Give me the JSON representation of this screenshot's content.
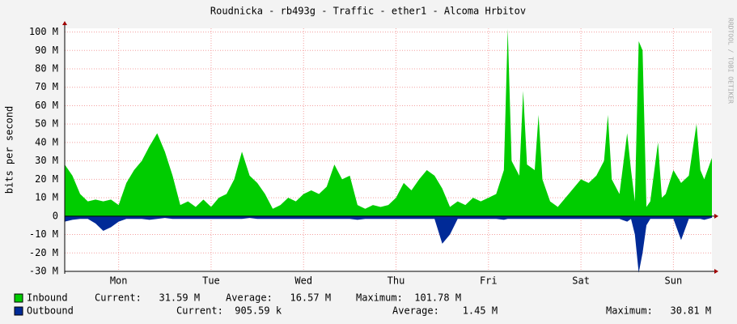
{
  "chart_data": {
    "type": "area",
    "title": "Roudnicka - rb493g - Traffic - ether1 - Alcoma Hrbitov",
    "y_label": "bits per second",
    "watermark": "RRDTOOL / TOBI OETIKER",
    "x": [
      0,
      2,
      4,
      6,
      8,
      10,
      12,
      14,
      16,
      18,
      20,
      22,
      24,
      26,
      28,
      30,
      32,
      34,
      36,
      38,
      40,
      42,
      44,
      46,
      48,
      50,
      52,
      54,
      56,
      58,
      60,
      62,
      64,
      66,
      68,
      70,
      72,
      74,
      76,
      78,
      80,
      82,
      84,
      86,
      88,
      90,
      92,
      94,
      96,
      98,
      100,
      102,
      104,
      106,
      108,
      110,
      112,
      114,
      115,
      116,
      118,
      119,
      120,
      122,
      123,
      124,
      126,
      128,
      130,
      132,
      134,
      136,
      138,
      140,
      141,
      142,
      144,
      146,
      147,
      148,
      149,
      150,
      151,
      152,
      154,
      155,
      156,
      158,
      160,
      162,
      164,
      165,
      166,
      168
    ],
    "xlim": [
      0,
      168
    ],
    "xticks": [
      {
        "value": 14,
        "label": "Mon"
      },
      {
        "value": 38,
        "label": "Tue"
      },
      {
        "value": 62,
        "label": "Wed"
      },
      {
        "value": 86,
        "label": "Thu"
      },
      {
        "value": 110,
        "label": "Fri"
      },
      {
        "value": 134,
        "label": "Sat"
      },
      {
        "value": 158,
        "label": "Sun"
      }
    ],
    "ylim": [
      -30000000,
      102000000
    ],
    "yticks": [
      {
        "value": -30000000,
        "label": "-30 M"
      },
      {
        "value": -20000000,
        "label": "-20 M"
      },
      {
        "value": -10000000,
        "label": "-10 M"
      },
      0,
      {
        "value": 10000000,
        "label": "10 M"
      },
      {
        "value": 20000000,
        "label": "20 M"
      },
      {
        "value": 30000000,
        "label": "30 M"
      },
      {
        "value": 40000000,
        "label": "40 M"
      },
      {
        "value": 50000000,
        "label": "50 M"
      },
      {
        "value": 60000000,
        "label": "60 M"
      },
      {
        "value": 70000000,
        "label": "70 M"
      },
      {
        "value": 80000000,
        "label": "80 M"
      },
      {
        "value": 90000000,
        "label": "90 M"
      },
      {
        "value": 100000000,
        "label": "100 M"
      }
    ],
    "grid": true,
    "series": [
      {
        "name": "Inbound",
        "color": "#00cc00",
        "stats": [
          "Current:   31.59 M",
          "Average:   16.57 M",
          "Maximum:  101.78 M"
        ],
        "values": [
          28000000,
          22000000,
          12000000,
          8000000,
          9000000,
          8000000,
          9000000,
          6000000,
          18000000,
          25000000,
          30000000,
          38000000,
          45000000,
          35000000,
          22000000,
          6000000,
          8000000,
          5000000,
          9000000,
          5000000,
          10000000,
          12000000,
          20000000,
          35000000,
          22000000,
          18000000,
          12000000,
          4000000,
          6000000,
          10000000,
          8000000,
          12000000,
          14000000,
          12000000,
          16000000,
          28000000,
          20000000,
          22000000,
          6000000,
          4000000,
          6000000,
          5000000,
          6000000,
          10000000,
          18000000,
          14000000,
          20000000,
          25000000,
          22000000,
          15000000,
          5000000,
          8000000,
          6000000,
          10000000,
          8000000,
          10000000,
          12000000,
          25000000,
          101780000,
          30000000,
          22000000,
          68000000,
          28000000,
          25000000,
          55000000,
          20000000,
          8000000,
          5000000,
          10000000,
          15000000,
          20000000,
          18000000,
          22000000,
          30000000,
          55000000,
          20000000,
          12000000,
          45000000,
          25000000,
          8000000,
          95000000,
          90000000,
          5000000,
          8000000,
          40000000,
          10000000,
          12000000,
          25000000,
          18000000,
          22000000,
          50000000,
          25000000,
          20000000,
          31590000
        ]
      },
      {
        "name": "Outbound",
        "color": "#002a97",
        "stats": [
          "Current:  905.59 k",
          "Average:    1.45 M",
          "Maximum:   30.81 M"
        ],
        "values": [
          -3000000,
          -2000000,
          -1500000,
          -1500000,
          -4000000,
          -8000000,
          -6000000,
          -3000000,
          -1500000,
          -1500000,
          -1500000,
          -2000000,
          -1500000,
          -1000000,
          -1500000,
          -1500000,
          -1500000,
          -1500000,
          -1500000,
          -1500000,
          -1500000,
          -1500000,
          -1500000,
          -1500000,
          -1000000,
          -1500000,
          -1500000,
          -1500000,
          -1500000,
          -1500000,
          -1500000,
          -1500000,
          -1500000,
          -1500000,
          -1500000,
          -1500000,
          -1500000,
          -1500000,
          -2000000,
          -1500000,
          -1500000,
          -1500000,
          -1500000,
          -1500000,
          -1500000,
          -1500000,
          -1500000,
          -1500000,
          -1500000,
          -15000000,
          -10000000,
          -1500000,
          -1500000,
          -1500000,
          -1500000,
          -1500000,
          -1500000,
          -2000000,
          -1500000,
          -1500000,
          -1500000,
          -1500000,
          -1500000,
          -1500000,
          -1500000,
          -1500000,
          -1500000,
          -1500000,
          -1500000,
          -1500000,
          -1500000,
          -1500000,
          -1500000,
          -1500000,
          -1500000,
          -1500000,
          -1500000,
          -3000000,
          -1500000,
          -10000000,
          -30810000,
          -20000000,
          -5000000,
          -1500000,
          -1500000,
          -1500000,
          -1500000,
          -1500000,
          -13000000,
          -1500000,
          -1500000,
          -1500000,
          -2000000,
          -910000
        ]
      }
    ]
  }
}
